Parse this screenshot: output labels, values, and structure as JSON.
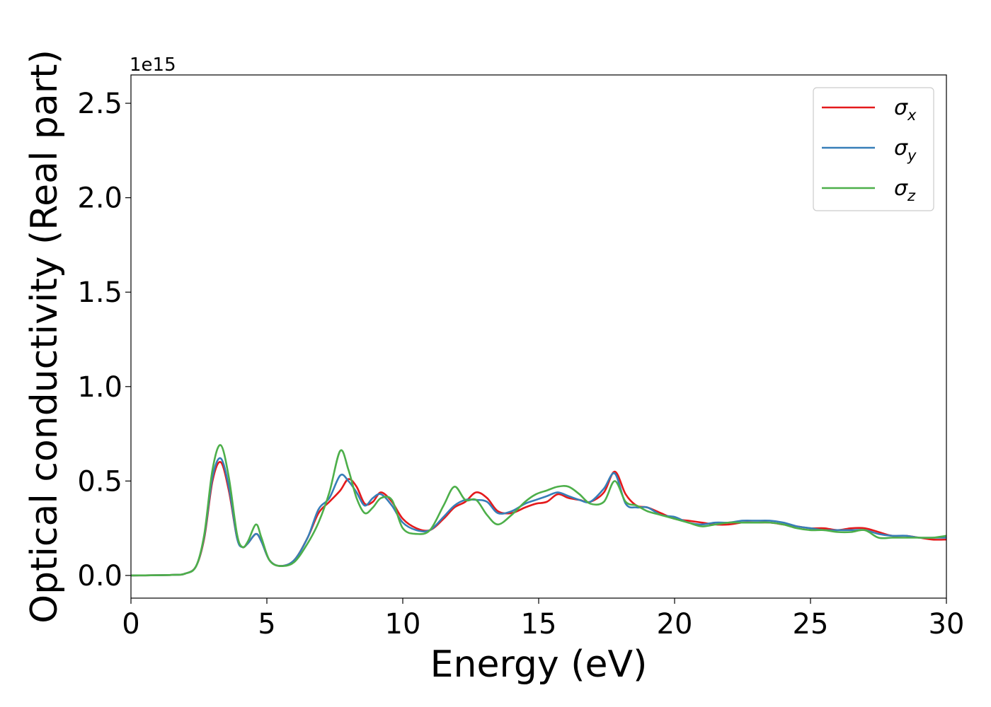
{
  "chart_data": {
    "type": "line",
    "xlabel": "Energy (eV)",
    "ylabel": "Optical conductivity (Real part)",
    "y_offset_label": "1e15",
    "xlim": [
      0,
      30
    ],
    "ylim": [
      -0.12,
      2.65
    ],
    "x_ticks": [
      0,
      5,
      10,
      15,
      20,
      25,
      30
    ],
    "x_tick_labels": [
      "0",
      "5",
      "10",
      "15",
      "20",
      "25",
      "30"
    ],
    "y_ticks": [
      0.0,
      0.5,
      1.0,
      1.5,
      2.0,
      2.5
    ],
    "y_tick_labels": [
      "0.0",
      "0.5",
      "1.0",
      "1.5",
      "2.0",
      "2.5"
    ],
    "grid": false,
    "legend_position": "top-right",
    "series": [
      {
        "name": "σx",
        "symbol": "σ",
        "subscript": "x",
        "color": "#e41a1c",
        "points": [
          [
            0,
            0
          ],
          [
            1.5,
            0.003
          ],
          [
            2.0,
            0.01
          ],
          [
            2.4,
            0.05
          ],
          [
            2.7,
            0.2
          ],
          [
            3.0,
            0.5
          ],
          [
            3.3,
            0.6
          ],
          [
            3.6,
            0.45
          ],
          [
            3.9,
            0.2
          ],
          [
            4.1,
            0.15
          ],
          [
            4.3,
            0.17
          ],
          [
            4.6,
            0.22
          ],
          [
            4.8,
            0.18
          ],
          [
            5.1,
            0.08
          ],
          [
            5.5,
            0.05
          ],
          [
            6.0,
            0.08
          ],
          [
            6.5,
            0.2
          ],
          [
            6.9,
            0.33
          ],
          [
            7.3,
            0.39
          ],
          [
            7.7,
            0.45
          ],
          [
            8.0,
            0.51
          ],
          [
            8.3,
            0.47
          ],
          [
            8.6,
            0.38
          ],
          [
            8.9,
            0.39
          ],
          [
            9.2,
            0.44
          ],
          [
            9.6,
            0.39
          ],
          [
            10.0,
            0.3
          ],
          [
            10.5,
            0.25
          ],
          [
            11.0,
            0.24
          ],
          [
            11.5,
            0.3
          ],
          [
            11.9,
            0.36
          ],
          [
            12.3,
            0.39
          ],
          [
            12.7,
            0.44
          ],
          [
            13.1,
            0.41
          ],
          [
            13.5,
            0.34
          ],
          [
            14.0,
            0.33
          ],
          [
            14.5,
            0.36
          ],
          [
            14.9,
            0.38
          ],
          [
            15.3,
            0.39
          ],
          [
            15.7,
            0.43
          ],
          [
            16.1,
            0.41
          ],
          [
            16.5,
            0.4
          ],
          [
            16.9,
            0.39
          ],
          [
            17.4,
            0.44
          ],
          [
            17.8,
            0.55
          ],
          [
            18.2,
            0.43
          ],
          [
            18.6,
            0.37
          ],
          [
            19.0,
            0.36
          ],
          [
            19.5,
            0.33
          ],
          [
            20.0,
            0.3
          ],
          [
            20.5,
            0.29
          ],
          [
            21.0,
            0.28
          ],
          [
            21.5,
            0.27
          ],
          [
            22.0,
            0.27
          ],
          [
            22.5,
            0.28
          ],
          [
            23.0,
            0.28
          ],
          [
            23.5,
            0.28
          ],
          [
            24.0,
            0.27
          ],
          [
            24.5,
            0.26
          ],
          [
            25.0,
            0.25
          ],
          [
            25.5,
            0.25
          ],
          [
            26.0,
            0.24
          ],
          [
            26.5,
            0.25
          ],
          [
            27.0,
            0.25
          ],
          [
            27.5,
            0.23
          ],
          [
            28.0,
            0.21
          ],
          [
            28.5,
            0.21
          ],
          [
            29.0,
            0.2
          ],
          [
            29.5,
            0.19
          ],
          [
            30.0,
            0.19
          ]
        ]
      },
      {
        "name": "σy",
        "symbol": "σ",
        "subscript": "y",
        "color": "#377eb8",
        "points": [
          [
            0,
            0
          ],
          [
            1.5,
            0.003
          ],
          [
            2.0,
            0.01
          ],
          [
            2.4,
            0.05
          ],
          [
            2.7,
            0.21
          ],
          [
            3.0,
            0.52
          ],
          [
            3.3,
            0.62
          ],
          [
            3.6,
            0.47
          ],
          [
            3.9,
            0.2
          ],
          [
            4.1,
            0.15
          ],
          [
            4.3,
            0.17
          ],
          [
            4.6,
            0.22
          ],
          [
            4.8,
            0.18
          ],
          [
            5.1,
            0.08
          ],
          [
            5.5,
            0.05
          ],
          [
            6.0,
            0.08
          ],
          [
            6.5,
            0.2
          ],
          [
            6.9,
            0.35
          ],
          [
            7.3,
            0.41
          ],
          [
            7.7,
            0.53
          ],
          [
            8.0,
            0.5
          ],
          [
            8.3,
            0.44
          ],
          [
            8.6,
            0.37
          ],
          [
            8.9,
            0.41
          ],
          [
            9.2,
            0.43
          ],
          [
            9.6,
            0.37
          ],
          [
            10.0,
            0.28
          ],
          [
            10.5,
            0.24
          ],
          [
            11.0,
            0.24
          ],
          [
            11.5,
            0.31
          ],
          [
            11.9,
            0.37
          ],
          [
            12.3,
            0.4
          ],
          [
            12.7,
            0.4
          ],
          [
            13.1,
            0.39
          ],
          [
            13.5,
            0.33
          ],
          [
            14.0,
            0.34
          ],
          [
            14.5,
            0.38
          ],
          [
            14.9,
            0.4
          ],
          [
            15.3,
            0.42
          ],
          [
            15.7,
            0.44
          ],
          [
            16.1,
            0.42
          ],
          [
            16.5,
            0.4
          ],
          [
            16.9,
            0.39
          ],
          [
            17.4,
            0.46
          ],
          [
            17.8,
            0.54
          ],
          [
            18.2,
            0.38
          ],
          [
            18.6,
            0.36
          ],
          [
            19.0,
            0.36
          ],
          [
            19.5,
            0.32
          ],
          [
            20.0,
            0.31
          ],
          [
            20.5,
            0.28
          ],
          [
            21.0,
            0.27
          ],
          [
            21.5,
            0.28
          ],
          [
            22.0,
            0.28
          ],
          [
            22.5,
            0.29
          ],
          [
            23.0,
            0.29
          ],
          [
            23.5,
            0.29
          ],
          [
            24.0,
            0.28
          ],
          [
            24.5,
            0.26
          ],
          [
            25.0,
            0.25
          ],
          [
            25.5,
            0.24
          ],
          [
            26.0,
            0.24
          ],
          [
            26.5,
            0.24
          ],
          [
            27.0,
            0.24
          ],
          [
            27.5,
            0.22
          ],
          [
            28.0,
            0.21
          ],
          [
            28.5,
            0.21
          ],
          [
            29.0,
            0.2
          ],
          [
            29.5,
            0.2
          ],
          [
            30.0,
            0.2
          ]
        ]
      },
      {
        "name": "σz",
        "symbol": "σ",
        "subscript": "z",
        "color": "#4daf4a",
        "points": [
          [
            0,
            0
          ],
          [
            1.5,
            0.003
          ],
          [
            2.0,
            0.01
          ],
          [
            2.4,
            0.05
          ],
          [
            2.7,
            0.22
          ],
          [
            3.0,
            0.56
          ],
          [
            3.3,
            0.69
          ],
          [
            3.6,
            0.52
          ],
          [
            3.9,
            0.22
          ],
          [
            4.1,
            0.15
          ],
          [
            4.3,
            0.18
          ],
          [
            4.6,
            0.27
          ],
          [
            4.8,
            0.2
          ],
          [
            5.1,
            0.08
          ],
          [
            5.5,
            0.05
          ],
          [
            6.0,
            0.07
          ],
          [
            6.5,
            0.17
          ],
          [
            6.9,
            0.28
          ],
          [
            7.3,
            0.44
          ],
          [
            7.7,
            0.66
          ],
          [
            8.0,
            0.56
          ],
          [
            8.3,
            0.41
          ],
          [
            8.6,
            0.33
          ],
          [
            8.9,
            0.36
          ],
          [
            9.2,
            0.41
          ],
          [
            9.6,
            0.4
          ],
          [
            10.0,
            0.25
          ],
          [
            10.5,
            0.22
          ],
          [
            11.0,
            0.24
          ],
          [
            11.5,
            0.37
          ],
          [
            11.9,
            0.47
          ],
          [
            12.3,
            0.4
          ],
          [
            12.7,
            0.4
          ],
          [
            13.1,
            0.32
          ],
          [
            13.5,
            0.27
          ],
          [
            14.0,
            0.32
          ],
          [
            14.5,
            0.39
          ],
          [
            14.9,
            0.43
          ],
          [
            15.3,
            0.45
          ],
          [
            15.7,
            0.47
          ],
          [
            16.1,
            0.47
          ],
          [
            16.5,
            0.43
          ],
          [
            16.9,
            0.38
          ],
          [
            17.4,
            0.39
          ],
          [
            17.8,
            0.5
          ],
          [
            18.2,
            0.39
          ],
          [
            18.6,
            0.37
          ],
          [
            19.0,
            0.34
          ],
          [
            19.5,
            0.32
          ],
          [
            20.0,
            0.3
          ],
          [
            20.5,
            0.28
          ],
          [
            21.0,
            0.26
          ],
          [
            21.5,
            0.27
          ],
          [
            22.0,
            0.28
          ],
          [
            22.5,
            0.28
          ],
          [
            23.0,
            0.28
          ],
          [
            23.5,
            0.28
          ],
          [
            24.0,
            0.27
          ],
          [
            24.5,
            0.25
          ],
          [
            25.0,
            0.24
          ],
          [
            25.5,
            0.24
          ],
          [
            26.0,
            0.23
          ],
          [
            26.5,
            0.23
          ],
          [
            27.0,
            0.24
          ],
          [
            27.5,
            0.2
          ],
          [
            28.0,
            0.2
          ],
          [
            28.5,
            0.2
          ],
          [
            29.0,
            0.2
          ],
          [
            29.5,
            0.2
          ],
          [
            30.0,
            0.21
          ]
        ]
      }
    ]
  }
}
